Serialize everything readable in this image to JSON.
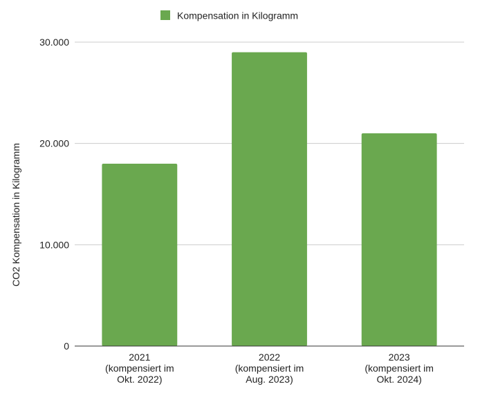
{
  "chart_data": {
    "type": "bar",
    "title": "",
    "legend": {
      "position": "top",
      "entries": [
        "Kompensation in Kilogramm"
      ]
    },
    "ylabel": "CO2 Kompensation in Kilogramm",
    "xlabel": "",
    "ylim": [
      0,
      30000
    ],
    "yticks": [
      0,
      10000,
      20000,
      30000
    ],
    "ytick_labels": [
      "0",
      "10.000",
      "20.000",
      "30.000"
    ],
    "grid": true,
    "categories": [
      [
        "2021",
        "(kompensiert im",
        "Okt. 2022)"
      ],
      [
        "2022",
        "(kompensiert im",
        "Aug. 2023)"
      ],
      [
        "2023",
        "(kompensiert im",
        "Okt. 2024)"
      ]
    ],
    "series": [
      {
        "name": "Kompensation in Kilogramm",
        "color": "#6aa84f",
        "values": [
          18000,
          29000,
          21000
        ]
      }
    ]
  }
}
